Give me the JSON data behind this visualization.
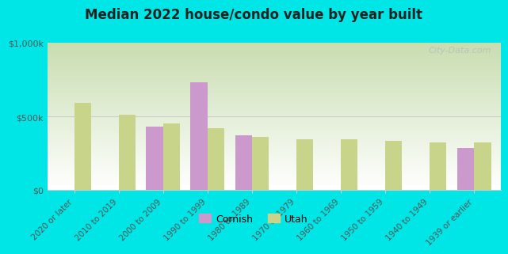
{
  "title": "Median 2022 house/condo value by year built",
  "background_color": "#00e5e5",
  "plot_bg_color1": "#c8ddb0",
  "plot_bg_color2": "#f0f5e8",
  "categories": [
    "2020 or later",
    "2010 to 2019",
    "2000 to 2009",
    "1990 to 1999",
    "1980 to 1989",
    "1970 to 1979",
    "1960 to 1969",
    "1950 to 1959",
    "1940 to 1949",
    "1939 or earlier"
  ],
  "cornish_values": [
    null,
    null,
    430000,
    730000,
    370000,
    null,
    null,
    null,
    null,
    285000
  ],
  "utah_values": [
    590000,
    510000,
    450000,
    420000,
    360000,
    345000,
    345000,
    335000,
    320000,
    320000
  ],
  "cornish_color": "#cc99cc",
  "utah_color": "#c8d48a",
  "ylim": [
    0,
    1000000
  ],
  "yticks": [
    0,
    500000,
    1000000
  ],
  "ytick_labels": [
    "$0",
    "$500k",
    "$1,000k"
  ],
  "bar_width": 0.38,
  "legend_labels": [
    "Cornish",
    "Utah"
  ],
  "watermark": "City-Data.com",
  "grid_color": "#cccccc",
  "spine_color": "#cccccc"
}
